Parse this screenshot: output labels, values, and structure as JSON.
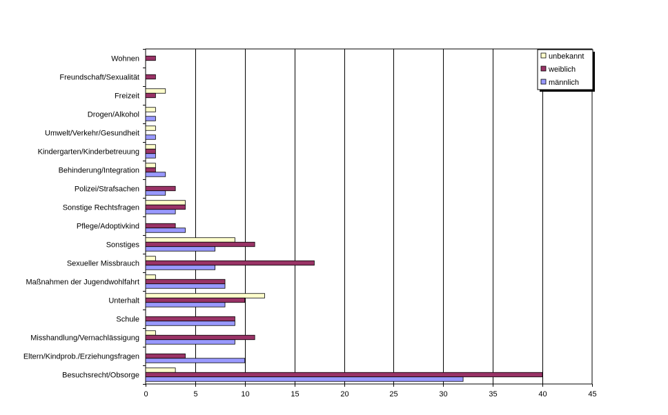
{
  "chart_data": {
    "type": "bar",
    "orientation": "horizontal",
    "categories": [
      "Wohnen",
      "Freundschaft/Sexualität",
      "Freizeit",
      "Drogen/Alkohol",
      "Umwelt/Verkehr/Gesundheit",
      "Kindergarten/Kinderbetreuung",
      "Behinderung/Integration",
      "Polizei/Strafsachen",
      "Sonstige Rechtsfragen",
      "Pflege/Adoptivkind",
      "Sonstiges",
      "Sexueller Missbrauch",
      "Maßnahmen der Jugendwohlfahrt",
      "Unterhalt",
      "Schule",
      "Misshandlung/Vernachlässigung",
      "Eltern/Kindprob./Erziehungsfragen",
      "Besuchsrecht/Obsorge"
    ],
    "series": [
      {
        "name": "unbekannt",
        "color": "#ffffcc",
        "values": [
          0,
          0,
          2,
          1,
          1,
          1,
          1,
          0,
          4,
          0,
          9,
          1,
          1,
          12,
          0,
          1,
          0,
          3
        ]
      },
      {
        "name": "weiblich",
        "color": "#993366",
        "values": [
          1,
          1,
          1,
          0,
          0,
          1,
          1,
          3,
          4,
          3,
          11,
          17,
          8,
          10,
          9,
          11,
          4,
          40
        ]
      },
      {
        "name": "männlich",
        "color": "#9999ff",
        "values": [
          0,
          0,
          0,
          1,
          1,
          1,
          2,
          2,
          3,
          4,
          7,
          7,
          8,
          8,
          9,
          9,
          10,
          32
        ]
      }
    ],
    "xlim": [
      0,
      45
    ],
    "xticks": [
      "0",
      "5",
      "10",
      "15",
      "20",
      "25",
      "30",
      "35",
      "40",
      "45"
    ],
    "grid": true,
    "legend_position": "top-right",
    "title": "",
    "xlabel": "",
    "ylabel": ""
  }
}
